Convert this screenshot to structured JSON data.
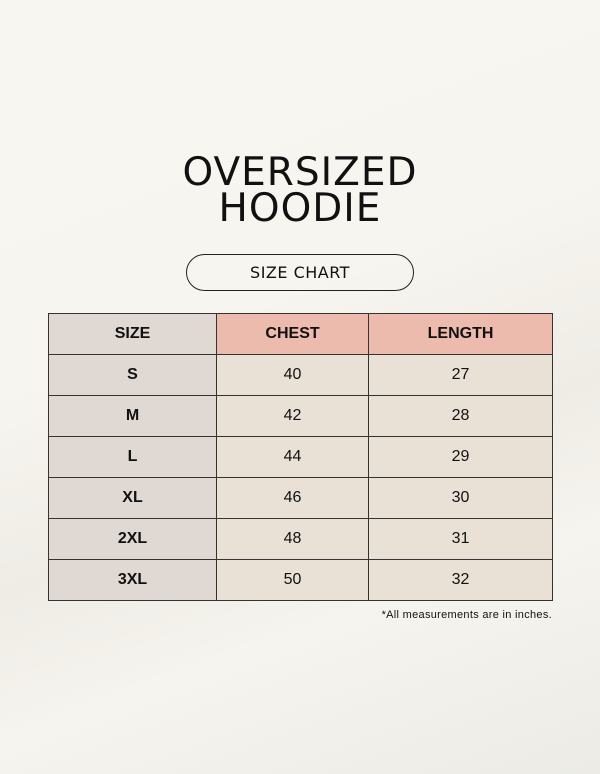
{
  "title": [
    "OVERSIZED",
    "HOODIE"
  ],
  "subtitle": "SIZE CHART",
  "table": {
    "headers": [
      "SIZE",
      "CHEST",
      "LENGTH"
    ],
    "rows": [
      [
        "S",
        "40",
        "27"
      ],
      [
        "M",
        "42",
        "28"
      ],
      [
        "L",
        "44",
        "29"
      ],
      [
        "XL",
        "46",
        "30"
      ],
      [
        "2XL",
        "48",
        "31"
      ],
      [
        "3XL",
        "50",
        "32"
      ]
    ]
  },
  "note": "*All measurements are in inches.",
  "colors": {
    "header_accent": "#edbbad",
    "size_column": "#dfd8d3",
    "cells": "#e9e1d6"
  }
}
